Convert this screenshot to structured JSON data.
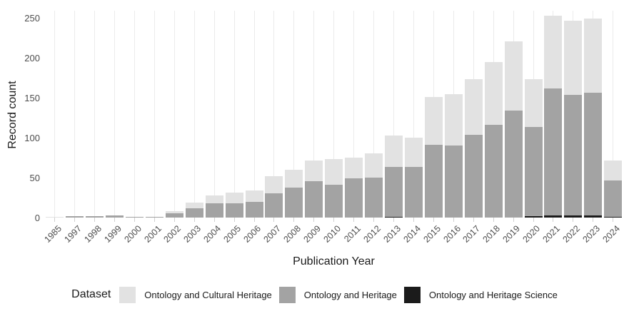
{
  "chart_data": {
    "type": "bar",
    "stacked": true,
    "title": "",
    "xlabel": "Publication Year",
    "ylabel": "Record count",
    "categories": [
      "1985",
      "1997",
      "1998",
      "1999",
      "2000",
      "2001",
      "2002",
      "2003",
      "2004",
      "2005",
      "2006",
      "2007",
      "2008",
      "2009",
      "2010",
      "2011",
      "2012",
      "2013",
      "2014",
      "2015",
      "2016",
      "2017",
      "2018",
      "2019",
      "2020",
      "2021",
      "2022",
      "2023",
      "2024"
    ],
    "series": [
      {
        "name": "Ontology and Heritage Science",
        "color": "#1b1b1b",
        "values": [
          0,
          0,
          0,
          0,
          0,
          0,
          0,
          0,
          0,
          0,
          0,
          0,
          0,
          0,
          0,
          0,
          0,
          1,
          0,
          0,
          0,
          0,
          0,
          0,
          2,
          3,
          3,
          3,
          1
        ]
      },
      {
        "name": "Ontology and Heritage",
        "color": "#a3a3a3",
        "values": [
          0,
          2,
          2,
          3,
          1,
          1,
          5,
          12,
          18,
          18,
          20,
          30,
          38,
          46,
          41,
          49,
          50,
          63,
          64,
          91,
          90,
          104,
          116,
          134,
          112,
          159,
          151,
          154,
          46
        ]
      },
      {
        "name": "Ontology and Cultural Heritage",
        "color": "#e2e2e2",
        "values": [
          1,
          0,
          0,
          0,
          0,
          0,
          3,
          7,
          10,
          13,
          14,
          22,
          22,
          26,
          32,
          26,
          31,
          39,
          36,
          60,
          65,
          70,
          79,
          87,
          60,
          91,
          93,
          93,
          25
        ]
      }
    ],
    "totals": [
      1,
      2,
      2,
      3,
      1,
      1,
      8,
      19,
      28,
      31,
      34,
      52,
      60,
      72,
      73,
      75,
      81,
      103,
      100,
      151,
      155,
      174,
      195,
      221,
      174,
      253,
      247,
      250,
      72
    ],
    "yticks": [
      "0",
      "50",
      "100",
      "150",
      "200",
      "250"
    ],
    "ylim": [
      0,
      260
    ],
    "grid": "vertical-only",
    "colors": {
      "background": "#ffffff",
      "gridline": "#ebebeb",
      "tick_label": "#4d4d4d",
      "axis_title": "#1a1a1a"
    },
    "legend": {
      "position": "bottom",
      "title": "Dataset",
      "items": [
        {
          "label": "Ontology and Cultural Heritage",
          "color": "#e2e2e2"
        },
        {
          "label": "Ontology and Heritage",
          "color": "#a3a3a3"
        },
        {
          "label": "Ontology and Heritage Science",
          "color": "#1b1b1b"
        }
      ]
    }
  }
}
